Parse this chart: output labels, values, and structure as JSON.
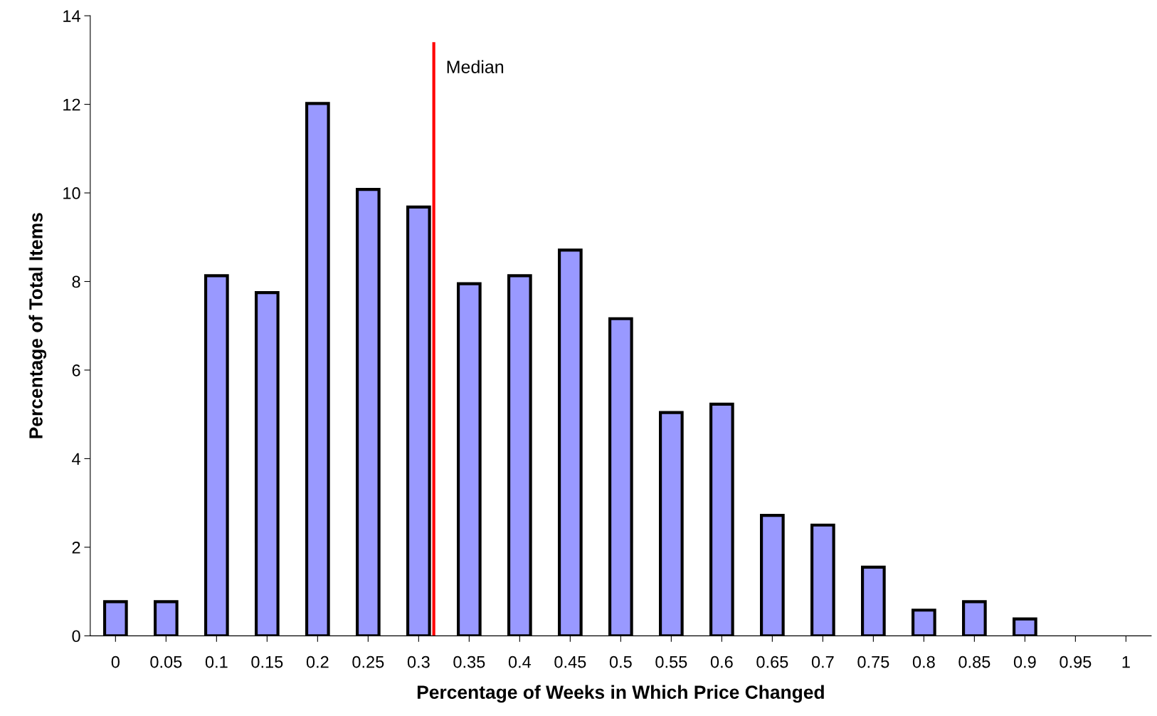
{
  "chart_data": {
    "type": "bar",
    "xlabel": "Percentage of Weeks in Which Price Changed",
    "ylabel": "Percentage of Total Items",
    "x": [
      0,
      0.05,
      0.1,
      0.15,
      0.2,
      0.25,
      0.3,
      0.35,
      0.4,
      0.45,
      0.5,
      0.55,
      0.6,
      0.65,
      0.7,
      0.75,
      0.8,
      0.85,
      0.9
    ],
    "values": [
      0.77,
      0.77,
      8.13,
      7.75,
      12.02,
      10.08,
      9.68,
      7.95,
      8.13,
      8.71,
      7.16,
      5.04,
      5.23,
      2.72,
      2.5,
      1.55,
      0.58,
      0.77,
      0.38
    ],
    "color": "#9999ff",
    "xlim": [
      -0.025,
      1.025
    ],
    "xticks": [
      0,
      0.05,
      0.1,
      0.15,
      0.2,
      0.25,
      0.3,
      0.35,
      0.4,
      0.45,
      0.5,
      0.55,
      0.6,
      0.65,
      0.7,
      0.75,
      0.8,
      0.85,
      0.9,
      0.95,
      1
    ],
    "ylim": [
      0,
      14
    ],
    "yticks": [
      0,
      2,
      4,
      6,
      8,
      10,
      12,
      14
    ],
    "ref_lines": [
      {
        "axis": "x",
        "value": 0.315,
        "label": "Median",
        "color": "#ff0000"
      }
    ],
    "grid": false,
    "legend": false
  }
}
